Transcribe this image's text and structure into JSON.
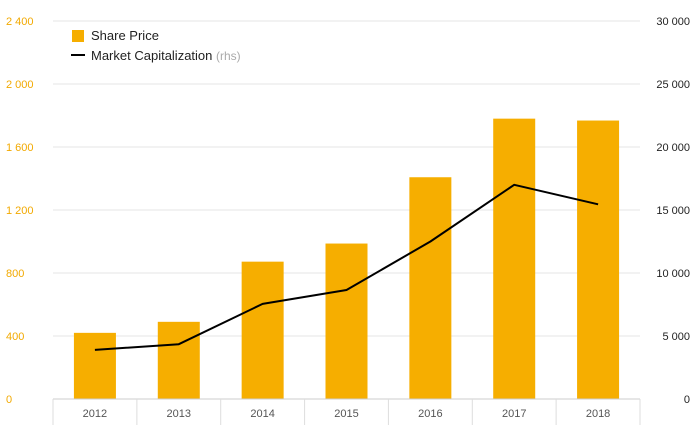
{
  "chart_data": {
    "type": "bar",
    "categories": [
      "2012",
      "2013",
      "2014",
      "2015",
      "2016",
      "2017",
      "2018"
    ],
    "series": [
      {
        "name": "Share Price",
        "type": "bar",
        "axis": "left",
        "color": "#f6ae00",
        "values": [
          420,
          490,
          872,
          987,
          1408,
          1780,
          1768
        ]
      },
      {
        "name": "Market Capitalization",
        "name_suffix": "(rhs)",
        "type": "line",
        "axis": "right",
        "color": "#000000",
        "values": [
          3900,
          4350,
          7550,
          8650,
          12500,
          17000,
          15450
        ]
      }
    ],
    "y_left": {
      "min": 0,
      "max": 2400,
      "ticks": [
        "0",
        "400",
        "800",
        "1 200",
        "1 600",
        "2 000",
        "2 400"
      ],
      "tick_values": [
        0,
        400,
        800,
        1200,
        1600,
        2000,
        2400
      ],
      "color": "#f2a900"
    },
    "y_right": {
      "min": 0,
      "max": 30000,
      "ticks": [
        "0",
        "5 000",
        "10 000",
        "15 000",
        "20 000",
        "25 000",
        "30 000"
      ],
      "tick_values": [
        0,
        5000,
        10000,
        15000,
        20000,
        25000,
        30000
      ],
      "color": "#222222"
    },
    "grid": true,
    "legend_position": "top-left"
  }
}
